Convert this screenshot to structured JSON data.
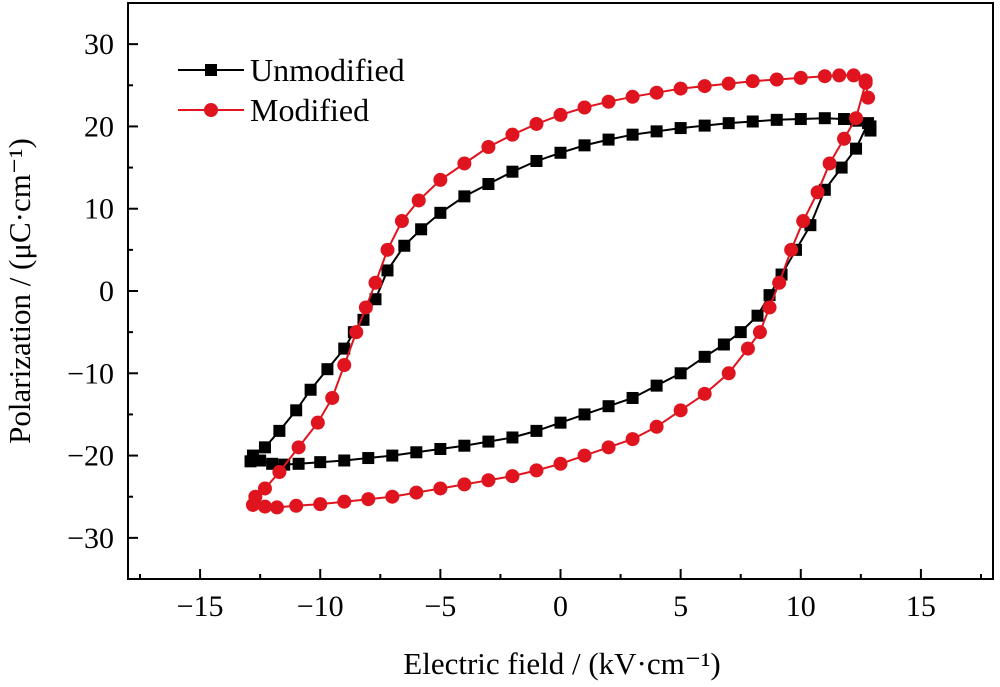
{
  "chart_data": {
    "type": "line",
    "title": "",
    "xlabel": "Electric field / (kV·cm⁻¹)",
    "ylabel": "Polarization / (μC·cm⁻¹)",
    "xlim": [
      -18,
      18
    ],
    "ylim": [
      -35,
      35
    ],
    "xticks": [
      -15,
      -10,
      -5,
      0,
      5,
      10,
      15
    ],
    "yticks": [
      -30,
      -20,
      -10,
      0,
      10,
      20,
      30
    ],
    "xtick_labels": [
      "−15",
      "−10",
      "−5",
      "0",
      "5",
      "10",
      "15"
    ],
    "ytick_labels": [
      "−30",
      "−20",
      "−10",
      "0",
      "10",
      "20",
      "30"
    ],
    "grid": false,
    "legend_position": "top-left",
    "series": [
      {
        "name": "Unmodified",
        "color": "#000000",
        "marker": "square",
        "x": [
          12.9,
          12.8,
          12.3,
          11.7,
          11.0,
          10.4,
          9.8,
          9.2,
          8.7,
          8.2,
          7.5,
          6.8,
          6.0,
          5.0,
          4.0,
          3.0,
          2.0,
          1.0,
          0.0,
          -1.0,
          -2.0,
          -3.0,
          -4.0,
          -5.0,
          -6.0,
          -7.0,
          -8.0,
          -9.0,
          -10.0,
          -10.9,
          -11.5,
          -12.0,
          -12.5,
          -12.9,
          -12.8,
          -12.3,
          -11.7,
          -11.0,
          -10.4,
          -9.7,
          -9.0,
          -8.6,
          -8.2,
          -7.7,
          -7.2,
          -6.5,
          -5.8,
          -5.0,
          -4.0,
          -3.0,
          -2.0,
          -1.0,
          0.0,
          1.0,
          2.0,
          3.0,
          4.0,
          5.0,
          6.0,
          7.0,
          8.0,
          9.0,
          10.0,
          11.0,
          11.8,
          12.3,
          12.9
        ],
        "y": [
          19.5,
          20.4,
          17.3,
          15.0,
          12.3,
          8.0,
          5.0,
          2.0,
          -0.5,
          -3.0,
          -5.0,
          -6.5,
          -8.0,
          -10.0,
          -11.5,
          -13.0,
          -14.0,
          -15.0,
          -16.0,
          -17.0,
          -17.8,
          -18.3,
          -18.8,
          -19.2,
          -19.6,
          -20.0,
          -20.3,
          -20.6,
          -20.8,
          -21.0,
          -21.1,
          -21.0,
          -20.6,
          -20.7,
          -20.0,
          -19.0,
          -17.0,
          -14.5,
          -12.0,
          -9.5,
          -7.0,
          -5.0,
          -3.5,
          -1.0,
          2.5,
          5.5,
          7.5,
          9.5,
          11.5,
          13.0,
          14.5,
          15.8,
          16.8,
          17.7,
          18.4,
          19.0,
          19.4,
          19.8,
          20.1,
          20.4,
          20.6,
          20.8,
          20.9,
          21.0,
          20.9,
          20.7,
          20.0
        ]
      },
      {
        "name": "Modified",
        "color": "#e0141e",
        "marker": "circle",
        "x": [
          12.8,
          12.7,
          12.3,
          11.8,
          11.2,
          10.7,
          10.1,
          9.6,
          9.1,
          8.7,
          8.3,
          7.8,
          7.0,
          6.0,
          5.0,
          4.0,
          3.0,
          2.0,
          1.0,
          0.0,
          -1.0,
          -2.0,
          -3.0,
          -4.0,
          -5.0,
          -6.0,
          -7.0,
          -8.0,
          -9.0,
          -10.0,
          -11.0,
          -11.8,
          -12.3,
          -12.8,
          -12.7,
          -12.3,
          -11.7,
          -10.9,
          -10.1,
          -9.5,
          -9.0,
          -8.5,
          -8.1,
          -7.7,
          -7.2,
          -6.6,
          -5.9,
          -5.0,
          -4.0,
          -3.0,
          -2.0,
          -1.0,
          0.0,
          1.0,
          2.0,
          3.0,
          4.0,
          5.0,
          6.0,
          7.0,
          8.0,
          9.0,
          10.0,
          11.0,
          11.6,
          12.2,
          12.7
        ],
        "y": [
          23.5,
          25.3,
          21.0,
          18.5,
          15.5,
          12.0,
          8.5,
          5.0,
          1.0,
          -2.0,
          -5.0,
          -7.0,
          -10.0,
          -12.5,
          -14.5,
          -16.5,
          -18.0,
          -19.0,
          -20.0,
          -21.0,
          -21.8,
          -22.5,
          -23.0,
          -23.5,
          -24.0,
          -24.5,
          -25.0,
          -25.3,
          -25.6,
          -25.9,
          -26.1,
          -26.3,
          -26.2,
          -26.0,
          -25.0,
          -24.0,
          -22.0,
          -19.0,
          -16.0,
          -13.0,
          -9.0,
          -5.0,
          -2.0,
          1.0,
          5.0,
          8.5,
          11.0,
          13.5,
          15.5,
          17.5,
          19.0,
          20.3,
          21.4,
          22.3,
          23.0,
          23.6,
          24.1,
          24.6,
          24.9,
          25.2,
          25.5,
          25.7,
          25.9,
          26.1,
          26.2,
          26.2,
          25.6
        ]
      }
    ]
  }
}
